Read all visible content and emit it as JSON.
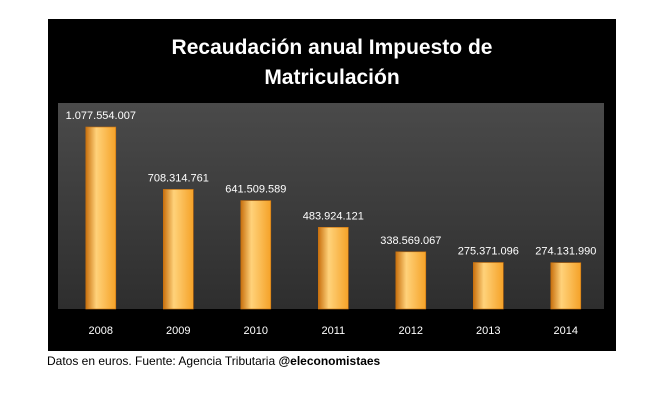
{
  "chart_data": {
    "type": "bar",
    "title_lines": [
      "Recaudación anual Impuesto de",
      "Matriculación"
    ],
    "categories": [
      "2008",
      "2009",
      "2010",
      "2011",
      "2012",
      "2013",
      "2014"
    ],
    "values": [
      1077554007,
      708314761,
      641509589,
      483924121,
      338569067,
      275371096,
      274131990
    ],
    "value_labels": [
      "1.077.554.007",
      "708.314.761",
      "641.509.589",
      "483.924.121",
      "338.569.067",
      "275.371.096",
      "274.131.990"
    ],
    "ylim": [
      0,
      1077554007
    ],
    "grid": false,
    "legend": "none",
    "colors": {
      "panel_background": "#000000",
      "plot_background": "#3a3a3a",
      "bar_light": "#ffd27a",
      "bar_mid": "#f5a228",
      "bar_dark": "#c8700e",
      "text": "#ffffff"
    }
  },
  "footer": {
    "source_text": "Datos en euros. Fuente: Agencia Tributaria ",
    "handle": "@eleconomistaes"
  }
}
